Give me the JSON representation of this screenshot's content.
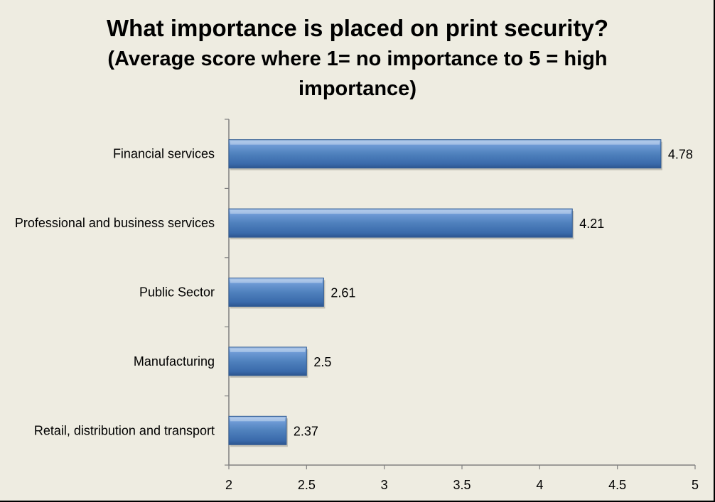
{
  "chart_data": {
    "type": "bar",
    "orientation": "horizontal",
    "title": "What importance is placed on print security?",
    "subtitle": "(Average score where 1= no importance to 5 = high importance)",
    "categories": [
      "Financial services",
      "Professional and business services",
      "Public Sector",
      "Manufacturing",
      "Retail, distribution and transport"
    ],
    "values": [
      4.78,
      4.21,
      2.61,
      2.5,
      2.37
    ],
    "value_labels": [
      "4.78",
      "4.21",
      "2.61",
      "2.5",
      "2.37"
    ],
    "xlim": [
      2,
      5
    ],
    "xticks": [
      "2",
      "2.5",
      "3",
      "3.5",
      "4",
      "4.5",
      "5"
    ],
    "xtick_values": [
      2,
      2.5,
      3,
      3.5,
      4,
      4.5,
      5
    ],
    "grid": false,
    "legend": "none",
    "bar_color": "#4F81BD",
    "background_color": "#EEECE1"
  }
}
